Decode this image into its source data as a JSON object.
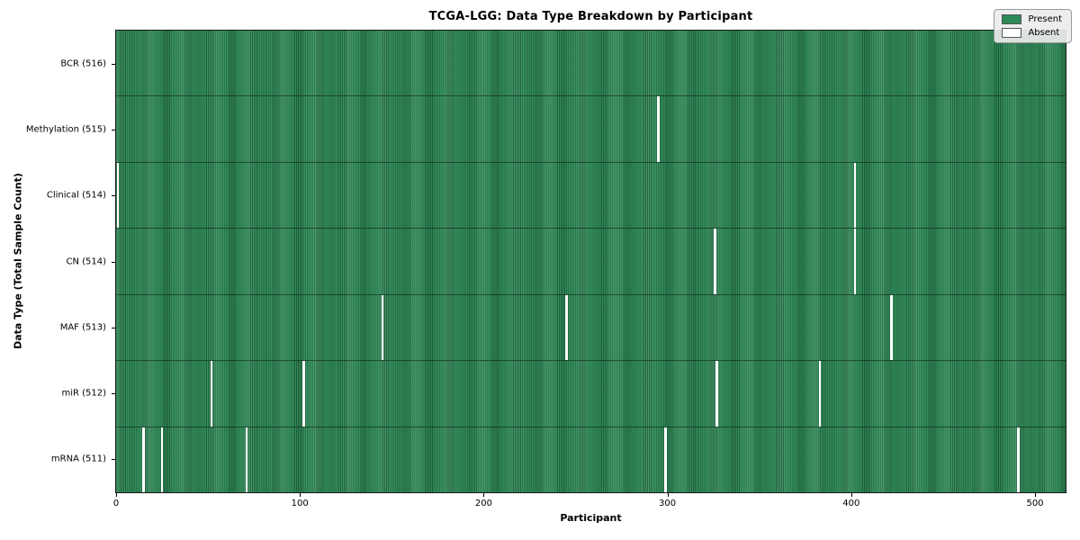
{
  "title": "TCGA-LGG: Data Type Breakdown by Participant",
  "legend": {
    "entries": [
      {
        "label": "Present",
        "color": "#2e8b57"
      },
      {
        "label": "Absent",
        "color": "#ffffff"
      }
    ]
  },
  "chart_data": {
    "type": "heatmap",
    "title": "TCGA-LGG: Data Type Breakdown by Participant",
    "xlabel": "Participant",
    "ylabel": "Data Type (Total Sample Count)",
    "n_participants": 516,
    "x_range": [
      0,
      516
    ],
    "x_tick_values": [
      0,
      100,
      200,
      300,
      400,
      500
    ],
    "x_tick_labels": [
      "0",
      "100",
      "200",
      "300",
      "400",
      "500"
    ],
    "grid": false,
    "legend_position": "upper right",
    "colors": {
      "present": "#2e8b57",
      "absent": "#ffffff"
    },
    "rows": [
      {
        "label": "BCR (516)",
        "name": "BCR",
        "total": 516,
        "absent_participants": []
      },
      {
        "label": "Methylation (515)",
        "name": "Methylation",
        "total": 515,
        "absent_participants": [
          295
        ]
      },
      {
        "label": "Clinical (514)",
        "name": "Clinical",
        "total": 514,
        "absent_participants": [
          1,
          402
        ]
      },
      {
        "label": "CN (514)",
        "name": "CN",
        "total": 514,
        "absent_participants": [
          326,
          402
        ]
      },
      {
        "label": "MAF (513)",
        "name": "MAF",
        "total": 513,
        "absent_participants": [
          145,
          245,
          422
        ]
      },
      {
        "label": "miR (512)",
        "name": "miR",
        "total": 512,
        "absent_participants": [
          52,
          102,
          327,
          383
        ]
      },
      {
        "label": "mRNA (511)",
        "name": "mRNA",
        "total": 511,
        "absent_participants": [
          15,
          25,
          71,
          299,
          491
        ]
      }
    ]
  }
}
